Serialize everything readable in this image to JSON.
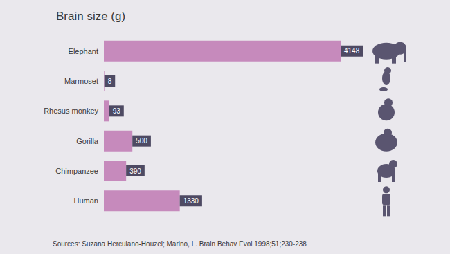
{
  "chart_data": {
    "type": "bar",
    "title": "Brain size (g)",
    "orientation": "horizontal",
    "categories": [
      "Elephant",
      "Marmoset",
      "Rhesus monkey",
      "Gorilla",
      "Chimpanzee",
      "Human"
    ],
    "values": [
      4148,
      8,
      93,
      500,
      390,
      1330
    ],
    "color": "#c68abc",
    "xlim": [
      0,
      4148
    ],
    "grid": false,
    "data_labels": true,
    "tick_labels": "y",
    "source": "Sources: Suzana Herculano-Houzel; Marino, L. Brain Behav Evol 1998;51;230-238"
  }
}
